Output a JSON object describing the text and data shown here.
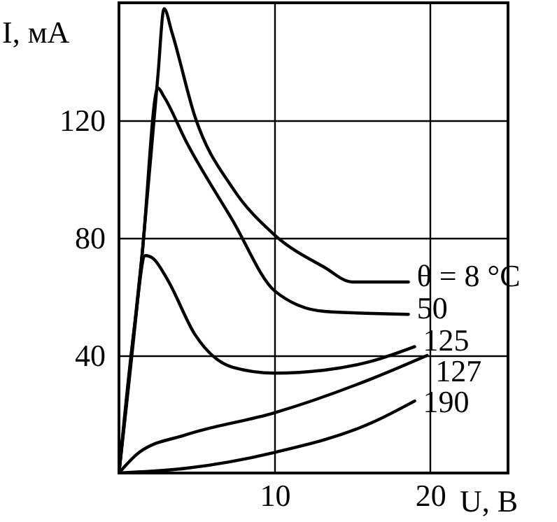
{
  "chart_data": {
    "type": "line",
    "xlabel": "U, В",
    "ylabel": "I, мА",
    "xlim": [
      0,
      25
    ],
    "ylim": [
      0,
      160
    ],
    "xticks": [
      10,
      20
    ],
    "yticks": [
      40,
      80,
      120
    ],
    "grid": true,
    "marker": "none",
    "line_style": "solid",
    "series": [
      {
        "name": "θ = 8 °C",
        "color": "#000000",
        "x": [
          0,
          1.5,
          2.5,
          2.9,
          3.4,
          4.9,
          7.3,
          10,
          13.2,
          15,
          18.6
        ],
        "values": [
          0,
          75,
          135,
          158,
          150,
          121,
          97,
          81,
          70,
          65,
          65
        ]
      },
      {
        "name": "50",
        "color": "#000000",
        "x": [
          0,
          1.5,
          2.5,
          2.9,
          4.3,
          7.3,
          10,
          13.2,
          18.6
        ],
        "values": [
          0,
          75,
          131,
          128,
          113,
          86,
          62,
          55,
          54
        ]
      },
      {
        "name": "125",
        "color": "#000000",
        "x": [
          0,
          1,
          1.7,
          2.2,
          3.1,
          4.9,
          7.3,
          10,
          13.2,
          16.2,
          19
        ],
        "values": [
          0,
          50,
          74,
          73,
          66,
          47,
          36,
          34,
          35,
          38,
          43
        ]
      },
      {
        "name": "127",
        "color": "#000000",
        "x": [
          0,
          1.3,
          4.3,
          10,
          16.2,
          19.8
        ],
        "values": [
          0,
          7,
          13,
          20.5,
          32,
          40
        ]
      },
      {
        "name": "190",
        "color": "#000000",
        "x": [
          0,
          4.3,
          10,
          16.2,
          19
        ],
        "values": [
          0,
          1.6,
          7,
          17,
          24.5
        ]
      }
    ]
  }
}
